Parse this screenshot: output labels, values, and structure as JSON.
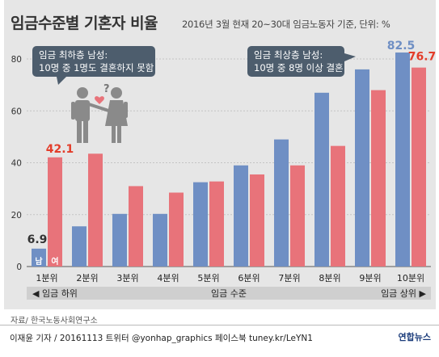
{
  "title": "임금수준별 기혼자 비율",
  "subtitle": "2016년 3월 현재 20~30대 임금노동자 기준, 단위: %",
  "source": "자료/ 한국노동사회연구소",
  "credit": "이재윤 기자 / 20161113   트위터 @yonhap_graphics  페이스북 tuney.kr/LeYN1",
  "agency": "연합뉴스",
  "callouts": {
    "low": [
      "임금 최하층 남성:",
      "10명 중 1명도 결혼하지 못함"
    ],
    "high": [
      "임금 최상층 남성:",
      "10명 중 8명 이상 결혼"
    ]
  },
  "bar_tags": {
    "male": "남",
    "female": "여"
  },
  "axis_band": {
    "left": "◀ 임금 하위",
    "center": "임금 수준",
    "right": "임금 상위 ▶"
  },
  "colors": {
    "male": "#6f8fc4",
    "female": "#e8737a",
    "female_label": "#e33d2a",
    "callout": "#4d5d6d",
    "axis_band": "#cfcfcf"
  },
  "chart_data": {
    "type": "bar",
    "categories": [
      "1분위",
      "2분위",
      "3분위",
      "4분위",
      "5분위",
      "6분위",
      "7분위",
      "8분위",
      "9분위",
      "10분위"
    ],
    "series": [
      {
        "name": "남",
        "values": [
          6.9,
          15.5,
          20.3,
          20.3,
          32.5,
          39.0,
          49.0,
          67.0,
          76.0,
          82.5
        ]
      },
      {
        "name": "여",
        "values": [
          42.1,
          43.5,
          31.0,
          28.5,
          32.8,
          35.5,
          39.0,
          46.5,
          68.0,
          76.7
        ]
      }
    ],
    "labeled": {
      "first_male": "6.9",
      "first_female": "42.1",
      "last_male": "82.5",
      "last_female": "76.7"
    },
    "yticks": [
      0,
      20,
      40,
      60,
      80
    ],
    "ylim": [
      0,
      85
    ],
    "grid": true
  }
}
